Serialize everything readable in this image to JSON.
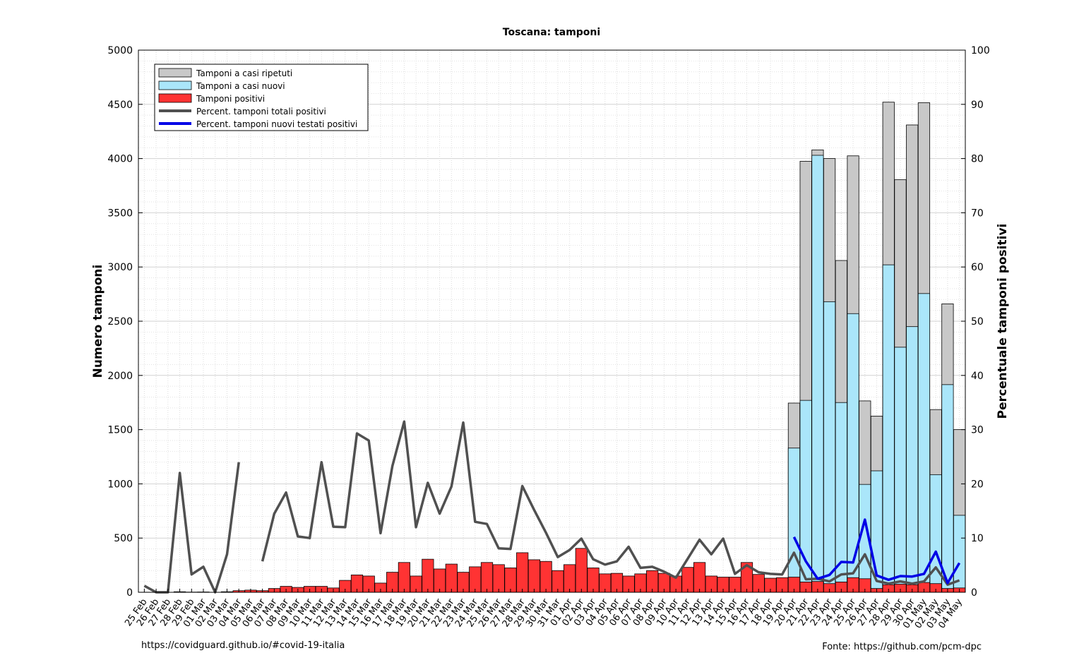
{
  "chart_data": {
    "type": "bar",
    "title": "Toscana: tamponi",
    "ylabel": "Numero tamponi",
    "y2label": "Percentuale tamponi positivi",
    "ylim": [
      0,
      5000
    ],
    "y2lim": [
      0,
      100
    ],
    "yticks": [
      "0",
      "500",
      "1000",
      "1500",
      "2000",
      "2500",
      "3000",
      "3500",
      "4000",
      "4500",
      "5000"
    ],
    "y2ticks": [
      "0",
      "10",
      "20",
      "30",
      "40",
      "50",
      "60",
      "70",
      "80",
      "90",
      "100"
    ],
    "grid": true,
    "legend_position": "top-left",
    "categories": [
      "25 Feb",
      "26 Feb",
      "27 Feb",
      "28 Feb",
      "29 Feb",
      "01 Mar",
      "02 Mar",
      "03 Mar",
      "04 Mar",
      "05 Mar",
      "06 Mar",
      "07 Mar",
      "08 Mar",
      "09 Mar",
      "10 Mar",
      "11 Mar",
      "12 Mar",
      "13 Mar",
      "14 Mar",
      "15 Mar",
      "16 Mar",
      "17 Mar",
      "18 Mar",
      "19 Mar",
      "20 Mar",
      "21 Mar",
      "22 Mar",
      "23 Mar",
      "24 Mar",
      "25 Mar",
      "26 Mar",
      "27 Mar",
      "28 Mar",
      "29 Mar",
      "30 Mar",
      "31 Mar",
      "01 Apr",
      "02 Apr",
      "03 Apr",
      "04 Apr",
      "05 Apr",
      "06 Apr",
      "07 Apr",
      "08 Apr",
      "09 Apr",
      "10 Apr",
      "11 Apr",
      "12 Apr",
      "13 Apr",
      "14 Apr",
      "15 Apr",
      "16 Apr",
      "17 Apr",
      "18 Apr",
      "19 Apr",
      "20 Apr",
      "21 Apr",
      "22 Apr",
      "23 Apr",
      "24 Apr",
      "25 Apr",
      "26 Apr",
      "27 Apr",
      "28 Apr",
      "29 Apr",
      "30 Apr",
      "01 May",
      "02 May",
      "03 May",
      "04 May"
    ],
    "series": [
      {
        "name": "Tamponi a casi ripetuti",
        "type": "bar",
        "color": "#c8c8c8",
        "values": [
          0,
          0,
          0,
          0,
          0,
          0,
          0,
          0,
          0,
          0,
          0,
          0,
          0,
          0,
          0,
          0,
          0,
          0,
          0,
          0,
          0,
          0,
          0,
          0,
          0,
          0,
          0,
          0,
          0,
          0,
          0,
          0,
          0,
          0,
          0,
          0,
          0,
          0,
          0,
          0,
          0,
          0,
          0,
          0,
          0,
          0,
          0,
          0,
          0,
          0,
          0,
          0,
          0,
          0,
          0,
          1745,
          3975,
          4080,
          4000,
          3060,
          4025,
          1765,
          1625,
          4520,
          3805,
          4310,
          4515,
          1685,
          2660,
          1500
        ]
      },
      {
        "name": "Tamponi a casi nuovi",
        "type": "bar",
        "color": "#aae6fa",
        "values": [
          0,
          0,
          0,
          0,
          0,
          0,
          0,
          0,
          0,
          0,
          0,
          0,
          0,
          0,
          0,
          0,
          0,
          0,
          0,
          0,
          0,
          0,
          0,
          0,
          0,
          0,
          0,
          0,
          0,
          0,
          0,
          0,
          0,
          0,
          0,
          0,
          0,
          0,
          0,
          0,
          0,
          0,
          0,
          0,
          0,
          0,
          0,
          0,
          0,
          0,
          0,
          0,
          0,
          0,
          0,
          1330,
          1770,
          4030,
          2680,
          1750,
          2570,
          995,
          1120,
          3020,
          2260,
          2450,
          2755,
          1085,
          1915,
          710
        ]
      },
      {
        "name": "Tamponi positivi",
        "type": "bar",
        "color": "#ff3333",
        "values": [
          1,
          0,
          0,
          5,
          2,
          3,
          0,
          5,
          15,
          20,
          15,
          35,
          55,
          45,
          55,
          55,
          40,
          110,
          160,
          150,
          85,
          185,
          275,
          150,
          305,
          215,
          260,
          185,
          235,
          275,
          255,
          225,
          365,
          300,
          285,
          200,
          255,
          405,
          225,
          170,
          175,
          150,
          170,
          200,
          175,
          150,
          230,
          275,
          150,
          140,
          140,
          275,
          165,
          130,
          135,
          140,
          95,
          100,
          80,
          95,
          135,
          125,
          35,
          70,
          75,
          70,
          90,
          80,
          35,
          40
        ]
      },
      {
        "name": "Percent. tamponi totali positivi",
        "type": "line",
        "color": "#505050",
        "values": [
          1.2,
          0,
          0,
          22,
          3.3,
          4.7,
          0,
          7,
          24,
          null,
          5.7,
          14.5,
          18.4,
          10.3,
          10,
          24,
          12.1,
          12,
          29.3,
          28,
          10.9,
          23.3,
          31.5,
          12,
          20.2,
          14.5,
          19.5,
          31.3,
          13,
          12.6,
          8.1,
          8,
          19.6,
          15.2,
          11,
          6.5,
          7.8,
          9.9,
          6.1,
          5.1,
          5.7,
          8.4,
          4.5,
          4.7,
          3.8,
          2.7,
          6.2,
          9.7,
          7,
          9.9,
          3.4,
          5,
          3.7,
          3.4,
          3.3,
          7.3,
          2.4,
          2.5,
          2,
          3.3,
          3.5,
          7,
          2.1,
          1.6,
          2,
          1.6,
          2,
          4.6,
          1.4,
          2.2
        ]
      },
      {
        "name": "Percent. tamponi nuovi testati positivi",
        "type": "line",
        "color": "#0000e6",
        "values": [
          null,
          null,
          null,
          null,
          null,
          null,
          null,
          null,
          null,
          null,
          null,
          null,
          null,
          null,
          null,
          null,
          null,
          null,
          null,
          null,
          null,
          null,
          null,
          null,
          null,
          null,
          null,
          null,
          null,
          null,
          null,
          null,
          null,
          null,
          null,
          null,
          null,
          null,
          null,
          null,
          null,
          null,
          null,
          null,
          null,
          null,
          null,
          null,
          null,
          null,
          null,
          null,
          null,
          null,
          null,
          10.2,
          5.7,
          2.5,
          3.2,
          5.6,
          5.5,
          13.4,
          3.1,
          2.3,
          3,
          2.9,
          3.4,
          7.5,
          1.7,
          5.4
        ]
      }
    ]
  },
  "footer": {
    "left": "https://covidguard.github.io/#covid-19-italia",
    "right": "Fonte:  https://github.com/pcm-dpc"
  }
}
